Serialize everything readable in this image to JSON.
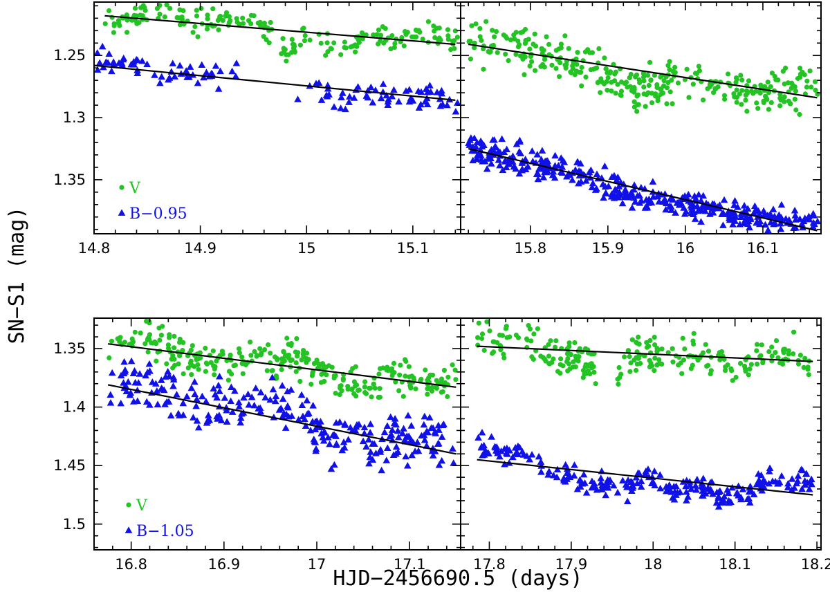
{
  "figure": {
    "ylabel": "SN−S1 (mag)",
    "xlabel": "HJD−2456690.5 (days)"
  },
  "colors": {
    "v": "#22c322",
    "b": "#1010e8",
    "fit": "#000000",
    "frame": "#000000"
  },
  "chart_data": [
    {
      "type": "scatter",
      "panel": "top-left",
      "xlim": [
        14.8,
        15.145
      ],
      "ylim": [
        1.3935,
        1.207
      ],
      "y_inverted": true,
      "xticks": [
        14.8,
        14.9,
        15,
        15.1
      ],
      "xtick_labels": [
        "14.8",
        "14.9",
        "15",
        "15.1"
      ],
      "yticks": [
        1.25,
        1.3,
        1.35
      ],
      "ytick_labels": [
        "1.25",
        "1.3",
        "1.35"
      ],
      "legend": [
        {
          "series": "V",
          "label": "V",
          "marker": "circle",
          "color": "#22c322"
        },
        {
          "series": "B",
          "label": "B−0.95",
          "marker": "triangle",
          "color": "#1010e8"
        }
      ],
      "legend_position": "bottom-left",
      "series": [
        {
          "name": "V",
          "marker": "circle",
          "color": "#22c322",
          "keypoints": [
            [
              14.81,
              1.225
            ],
            [
              14.85,
              1.218
            ],
            [
              14.9,
              1.222
            ],
            [
              14.95,
              1.224
            ],
            [
              14.97,
              1.23
            ],
            [
              14.98,
              1.248
            ],
            [
              15.0,
              1.235
            ],
            [
              15.03,
              1.245
            ],
            [
              15.06,
              1.236
            ],
            [
              15.1,
              1.232
            ],
            [
              15.14,
              1.236
            ]
          ],
          "noise": 0.005,
          "n_points": 200,
          "x_range": [
            14.81,
            15.143
          ]
        },
        {
          "name": "B−0.95",
          "marker": "triangle",
          "color": "#1010e8",
          "keypoints": [
            [
              14.8,
              1.25
            ],
            [
              14.83,
              1.255
            ],
            [
              14.85,
              1.265
            ],
            [
              14.9,
              1.266
            ],
            [
              14.93,
              1.267
            ],
            [
              14.99,
              1.285
            ],
            [
              15.01,
              1.275
            ],
            [
              15.03,
              1.288
            ],
            [
              15.05,
              1.283
            ],
            [
              15.08,
              1.283
            ],
            [
              15.1,
              1.284
            ],
            [
              15.12,
              1.277
            ],
            [
              15.14,
              1.288
            ]
          ],
          "noise": 0.005,
          "n_points": 140,
          "x_range": [
            14.8,
            15.143
          ],
          "gaps": [
            [
              14.935,
              14.99
            ]
          ]
        }
      ],
      "fits": [
        {
          "series": "V",
          "x": [
            14.81,
            15.14
          ],
          "y": [
            1.218,
            1.241
          ]
        },
        {
          "series": "B−0.95",
          "x": [
            14.8,
            15.14
          ],
          "y": [
            1.258,
            1.286
          ]
        }
      ]
    },
    {
      "type": "scatter",
      "panel": "top-right",
      "xlim": [
        15.71,
        16.175
      ],
      "ylim": [
        1.3935,
        1.207
      ],
      "y_inverted": true,
      "xticks": [
        15.8,
        15.9,
        16,
        16.1
      ],
      "xtick_labels": [
        "15.8",
        "15.9",
        "16",
        "16.1"
      ],
      "yticks": [
        1.25,
        1.3,
        1.35
      ],
      "ytick_labels": [],
      "legend": [],
      "series": [
        {
          "name": "V",
          "marker": "circle",
          "color": "#22c322",
          "keypoints": [
            [
              15.72,
              1.24
            ],
            [
              15.8,
              1.245
            ],
            [
              15.88,
              1.26
            ],
            [
              15.93,
              1.278
            ],
            [
              15.97,
              1.27
            ],
            [
              16.0,
              1.265
            ],
            [
              16.04,
              1.275
            ],
            [
              16.1,
              1.28
            ],
            [
              16.17,
              1.277
            ]
          ],
          "noise": 0.008,
          "n_points": 330,
          "x_range": [
            15.72,
            16.172
          ]
        },
        {
          "name": "B−0.95",
          "marker": "triangle",
          "color": "#1010e8",
          "keypoints": [
            [
              15.72,
              1.325
            ],
            [
              15.8,
              1.335
            ],
            [
              15.86,
              1.343
            ],
            [
              15.9,
              1.355
            ],
            [
              15.95,
              1.365
            ],
            [
              16.0,
              1.37
            ],
            [
              16.05,
              1.378
            ],
            [
              16.1,
              1.382
            ],
            [
              16.17,
              1.385
            ]
          ],
          "noise": 0.006,
          "n_points": 380,
          "x_range": [
            15.72,
            16.172
          ]
        }
      ],
      "fits": [
        {
          "series": "V",
          "x": [
            15.72,
            16.17
          ],
          "y": [
            1.241,
            1.284
          ]
        },
        {
          "series": "B−0.95",
          "x": [
            15.72,
            16.17
          ],
          "y": [
            1.325,
            1.391
          ]
        }
      ]
    },
    {
      "type": "scatter",
      "panel": "bottom-left",
      "xlim": [
        16.76,
        17.155
      ],
      "ylim": [
        1.522,
        1.324
      ],
      "y_inverted": true,
      "xticks": [
        16.8,
        16.9,
        17,
        17.1
      ],
      "xtick_labels": [
        "16.8",
        "16.9",
        "17",
        "17.1"
      ],
      "yticks": [
        1.35,
        1.4,
        1.45,
        1.5
      ],
      "ytick_labels": [
        "1.35",
        "1.4",
        "1.45",
        "1.5"
      ],
      "legend": [
        {
          "series": "V",
          "label": "V",
          "marker": "circle",
          "color": "#22c322"
        },
        {
          "series": "B",
          "label": "B−1.05",
          "marker": "triangle",
          "color": "#1010e8"
        }
      ],
      "legend_position": "bottom-left",
      "series": [
        {
          "name": "V",
          "marker": "circle",
          "color": "#22c322",
          "keypoints": [
            [
              16.78,
              1.343
            ],
            [
              16.82,
              1.34
            ],
            [
              16.86,
              1.357
            ],
            [
              16.9,
              1.362
            ],
            [
              16.93,
              1.355
            ],
            [
              16.96,
              1.358
            ],
            [
              16.99,
              1.36
            ],
            [
              17.02,
              1.375
            ],
            [
              17.05,
              1.385
            ],
            [
              17.08,
              1.372
            ],
            [
              17.1,
              1.378
            ],
            [
              17.14,
              1.382
            ]
          ],
          "noise": 0.008,
          "n_points": 300,
          "x_range": [
            16.775,
            17.15
          ]
        },
        {
          "name": "B−1.05",
          "marker": "triangle",
          "color": "#1010e8",
          "keypoints": [
            [
              16.78,
              1.388
            ],
            [
              16.82,
              1.376
            ],
            [
              16.86,
              1.395
            ],
            [
              16.9,
              1.4
            ],
            [
              16.93,
              1.395
            ],
            [
              16.96,
              1.4
            ],
            [
              16.99,
              1.41
            ],
            [
              17.02,
              1.43
            ],
            [
              17.04,
              1.42
            ],
            [
              17.06,
              1.44
            ],
            [
              17.08,
              1.425
            ],
            [
              17.1,
              1.432
            ],
            [
              17.12,
              1.425
            ],
            [
              17.14,
              1.437
            ]
          ],
          "noise": 0.01,
          "n_points": 260,
          "x_range": [
            16.775,
            17.15
          ]
        }
      ],
      "fits": [
        {
          "series": "V",
          "x": [
            16.775,
            17.15
          ],
          "y": [
            1.346,
            1.383
          ]
        },
        {
          "series": "B−1.05",
          "x": [
            16.775,
            17.15
          ],
          "y": [
            1.381,
            1.44
          ]
        }
      ]
    },
    {
      "type": "scatter",
      "panel": "bottom-right",
      "xlim": [
        17.765,
        18.205
      ],
      "ylim": [
        1.522,
        1.324
      ],
      "y_inverted": true,
      "xticks": [
        17.8,
        17.9,
        18,
        18.1,
        18.2
      ],
      "xtick_labels": [
        "17.8",
        "17.9",
        "18",
        "18.1",
        "18.2"
      ],
      "yticks": [
        1.35,
        1.4,
        1.45,
        1.5
      ],
      "ytick_labels": [],
      "legend": [],
      "series": [
        {
          "name": "V",
          "marker": "circle",
          "color": "#22c322",
          "keypoints": [
            [
              17.79,
              1.342
            ],
            [
              17.84,
              1.345
            ],
            [
              17.88,
              1.355
            ],
            [
              17.92,
              1.36
            ],
            [
              17.96,
              1.37
            ],
            [
              17.98,
              1.35
            ],
            [
              18.02,
              1.355
            ],
            [
              18.06,
              1.355
            ],
            [
              18.1,
              1.37
            ],
            [
              18.13,
              1.35
            ],
            [
              18.17,
              1.356
            ],
            [
              18.19,
              1.36
            ]
          ],
          "noise": 0.007,
          "n_points": 260,
          "x_range": [
            17.785,
            18.195
          ],
          "gaps": [
            [
              17.93,
              17.955
            ]
          ]
        },
        {
          "name": "B−1.05",
          "marker": "triangle",
          "color": "#1010e8",
          "keypoints": [
            [
              17.79,
              1.432
            ],
            [
              17.82,
              1.438
            ],
            [
              17.85,
              1.442
            ],
            [
              17.88,
              1.455
            ],
            [
              17.92,
              1.465
            ],
            [
              17.96,
              1.47
            ],
            [
              17.99,
              1.46
            ],
            [
              18.02,
              1.472
            ],
            [
              18.06,
              1.468
            ],
            [
              18.08,
              1.475
            ],
            [
              18.11,
              1.478
            ],
            [
              18.14,
              1.46
            ],
            [
              18.17,
              1.466
            ],
            [
              18.19,
              1.462
            ]
          ],
          "noise": 0.005,
          "n_points": 240,
          "x_range": [
            17.785,
            18.195
          ]
        }
      ],
      "fits": [
        {
          "series": "V",
          "x": [
            17.785,
            18.195
          ],
          "y": [
            1.348,
            1.361
          ]
        },
        {
          "series": "B−1.05",
          "x": [
            17.785,
            18.195
          ],
          "y": [
            1.445,
            1.475
          ]
        }
      ]
    }
  ]
}
